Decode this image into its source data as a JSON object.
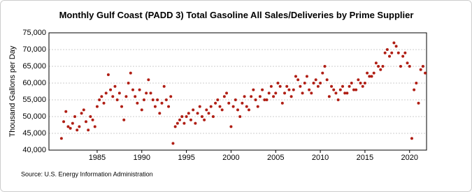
{
  "chart_data": {
    "type": "scatter",
    "title": "Monthly Gulf Coast (PADD 3) Total Gasoline All Sales/Deliveries by Prime Supplier",
    "y_label": "Thousand Gallons per Day",
    "source": "Source: U.S. Energy Information Administration",
    "color": "#b01e14",
    "grid": true,
    "xlim": [
      1979.6,
      2021.9
    ],
    "xticks": [
      1985,
      1990,
      1995,
      2000,
      2005,
      2010,
      2015,
      2020
    ],
    "ylim": [
      40000,
      75000
    ],
    "yticks": [
      {
        "value": 40000,
        "label": "40,000"
      },
      {
        "value": 45000,
        "label": "45,000"
      },
      {
        "value": 50000,
        "label": "50,000"
      },
      {
        "value": 55000,
        "label": "55,000"
      },
      {
        "value": 60000,
        "label": "60,000"
      },
      {
        "value": 65000,
        "label": "65,000"
      },
      {
        "value": 70000,
        "label": "70,000"
      },
      {
        "value": 75000,
        "label": "75,000"
      }
    ],
    "x": [
      1981.0,
      1981.25,
      1981.5,
      1981.75,
      1982.0,
      1982.25,
      1982.5,
      1982.75,
      1983.0,
      1983.25,
      1983.5,
      1983.75,
      1984.0,
      1984.25,
      1984.5,
      1984.75,
      1985.0,
      1985.25,
      1985.5,
      1985.75,
      1986.0,
      1986.25,
      1986.5,
      1986.75,
      1987.0,
      1987.25,
      1987.5,
      1987.75,
      1988.0,
      1988.25,
      1988.5,
      1988.75,
      1989.0,
      1989.25,
      1989.5,
      1989.75,
      1990.0,
      1990.25,
      1990.5,
      1990.75,
      1991.0,
      1991.25,
      1991.5,
      1991.75,
      1992.0,
      1992.25,
      1992.5,
      1992.75,
      1993.0,
      1993.25,
      1993.5,
      1993.75,
      1994.0,
      1994.25,
      1994.5,
      1994.75,
      1995.0,
      1995.25,
      1995.5,
      1995.75,
      1996.0,
      1996.25,
      1996.5,
      1996.75,
      1997.0,
      1997.25,
      1997.5,
      1997.75,
      1998.0,
      1998.25,
      1998.5,
      1998.75,
      1999.0,
      1999.25,
      1999.5,
      1999.75,
      2000.0,
      2000.25,
      2000.5,
      2000.75,
      2001.0,
      2001.25,
      2001.5,
      2001.75,
      2002.0,
      2002.25,
      2002.5,
      2002.75,
      2003.0,
      2003.25,
      2003.5,
      2003.75,
      2004.0,
      2004.25,
      2004.5,
      2004.75,
      2005.0,
      2005.25,
      2005.5,
      2005.75,
      2006.0,
      2006.25,
      2006.5,
      2006.75,
      2007.0,
      2007.25,
      2007.5,
      2007.75,
      2008.0,
      2008.25,
      2008.5,
      2008.75,
      2009.0,
      2009.25,
      2009.5,
      2009.75,
      2010.0,
      2010.25,
      2010.5,
      2010.75,
      2011.0,
      2011.25,
      2011.5,
      2011.75,
      2012.0,
      2012.25,
      2012.5,
      2012.75,
      2013.0,
      2013.25,
      2013.5,
      2013.75,
      2014.0,
      2014.25,
      2014.5,
      2014.75,
      2015.0,
      2015.25,
      2015.5,
      2015.75,
      2016.0,
      2016.25,
      2016.5,
      2016.75,
      2017.0,
      2017.25,
      2017.5,
      2017.75,
      2018.0,
      2018.25,
      2018.5,
      2018.75,
      2019.0,
      2019.25,
      2019.5,
      2019.75,
      2020.0,
      2020.25,
      2020.5,
      2020.75,
      2021.0,
      2021.25,
      2021.5,
      2021.75
    ],
    "values": [
      43500,
      48500,
      51500,
      47000,
      46500,
      48000,
      50000,
      46000,
      47000,
      51000,
      52000,
      48500,
      46000,
      50000,
      49000,
      47000,
      53000,
      55000,
      56000,
      54000,
      57000,
      62500,
      58000,
      56000,
      59000,
      55000,
      57000,
      53000,
      49000,
      56000,
      60000,
      63000,
      58000,
      56000,
      54000,
      58000,
      52000,
      55000,
      57000,
      61000,
      57000,
      55000,
      53000,
      55000,
      51000,
      54000,
      59000,
      55000,
      53000,
      56000,
      42000,
      47000,
      48000,
      49000,
      50000,
      48000,
      50000,
      51000,
      49000,
      52000,
      48000,
      51000,
      53000,
      50000,
      49000,
      52000,
      51000,
      53000,
      50000,
      54000,
      55000,
      53000,
      52000,
      56000,
      57000,
      54000,
      47000,
      53000,
      55000,
      52000,
      50000,
      54000,
      56000,
      53000,
      52000,
      56000,
      58000,
      55000,
      53000,
      56000,
      58000,
      55000,
      55000,
      57000,
      59000,
      56000,
      57000,
      60000,
      59000,
      54000,
      57000,
      59000,
      58000,
      56000,
      58000,
      62000,
      61000,
      59000,
      57000,
      60000,
      62000,
      58000,
      57000,
      60000,
      61000,
      59000,
      60000,
      63000,
      65000,
      61000,
      56000,
      59000,
      58000,
      57000,
      55000,
      58000,
      59000,
      57000,
      57000,
      59000,
      60000,
      58000,
      58000,
      61000,
      60000,
      59000,
      60000,
      63000,
      62000,
      62000,
      63000,
      66000,
      65000,
      64000,
      65000,
      69000,
      70000,
      68000,
      69000,
      72000,
      71000,
      69000,
      65000,
      68000,
      69000,
      66000,
      65000,
      43500,
      58000,
      60000,
      54000,
      64000,
      65000,
      63000
    ]
  }
}
